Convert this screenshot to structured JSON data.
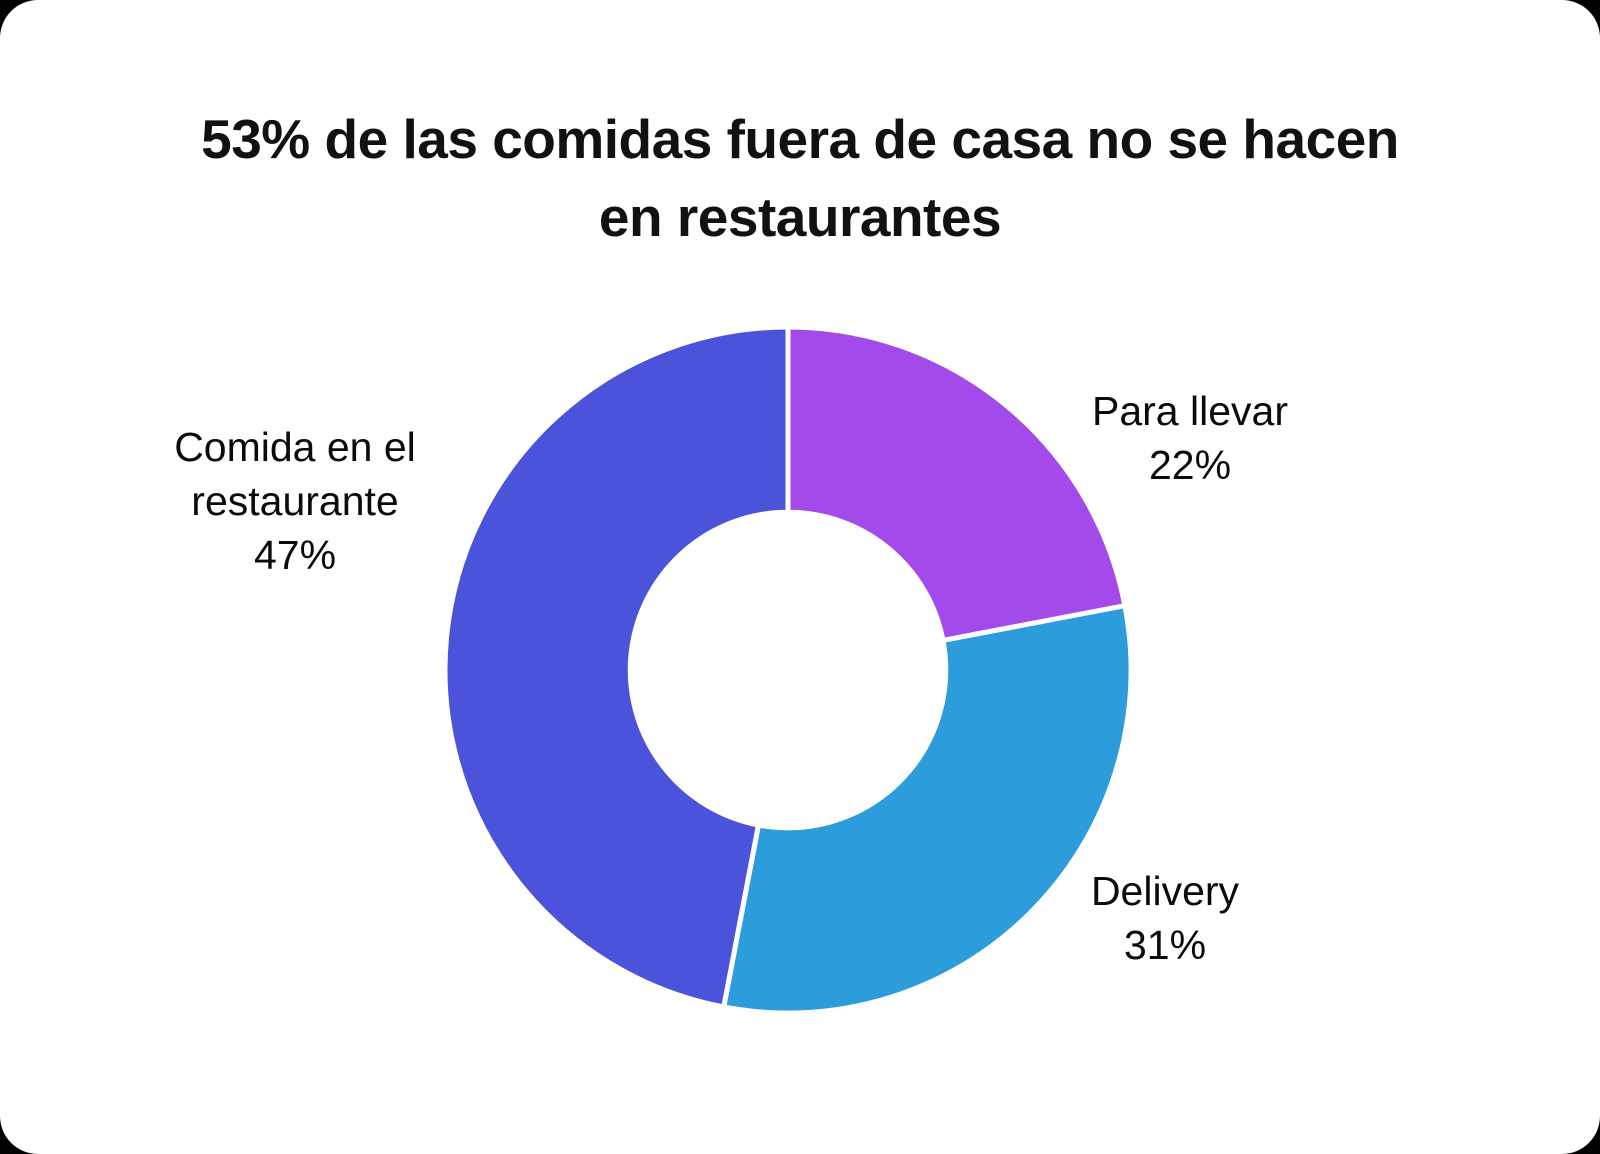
{
  "title": {
    "line1": "53% de las comidas fuera de casa no se hacen",
    "line2": "en restaurantes"
  },
  "chart_data": {
    "type": "pie",
    "donut": true,
    "title": "53% de las comidas fuera de casa no se hacen en restaurantes",
    "start_angle_deg": -90,
    "direction": "clockwise",
    "inner_radius_ratio": 0.46,
    "legend_position": "around",
    "categories": [
      "Para llevar",
      "Delivery",
      "Comida en el restaurante"
    ],
    "values": [
      22,
      31,
      47
    ],
    "segments": [
      {
        "label": "Para llevar",
        "value": 22,
        "display": "22%",
        "color": "#a24bea"
      },
      {
        "label": "Delivery",
        "value": 31,
        "display": "31%",
        "color": "#2d9cdb"
      },
      {
        "label": "Comida en el restaurante",
        "value": 47,
        "display": "47%",
        "color": "#4a53d9"
      }
    ],
    "separator_color": "#ffffff"
  }
}
